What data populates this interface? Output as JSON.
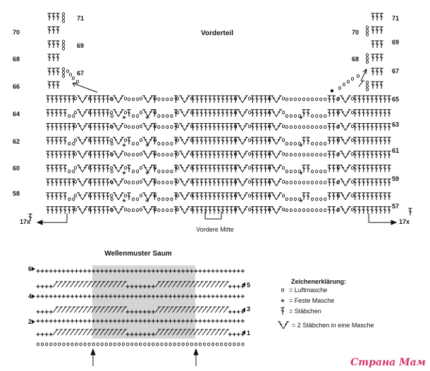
{
  "front": {
    "title": "Vorderteil",
    "center_label": "Vordere Mitte",
    "repeat_left": "17x",
    "repeat_right": "17x",
    "rows_left": [
      "70",
      "68",
      "66",
      "64",
      "62",
      "60",
      "58"
    ],
    "rows_left_inner": [
      "71",
      "69",
      "67"
    ],
    "rows_right": [
      "71",
      "69",
      "67",
      "65",
      "63",
      "61",
      "59",
      "57"
    ],
    "rows_right_inner": [
      "70",
      "68"
    ]
  },
  "hem": {
    "title": "Wellenmuster Saum",
    "rows_left": [
      "6",
      "4",
      "2"
    ],
    "rows_right": [
      "5",
      "3",
      "1"
    ]
  },
  "legend": {
    "title": "Zeichenerklärung:",
    "items": [
      {
        "symbol": "chain-icon",
        "text": "= Luftmasche"
      },
      {
        "symbol": "plus-icon",
        "text": "= Feste Masche"
      },
      {
        "symbol": "treble-icon",
        "text": "= Stäbchen"
      },
      {
        "symbol": "v-treble-icon",
        "text": "= 2 Stäbchen in eine Masche"
      }
    ]
  },
  "watermark": "Страна Мам"
}
